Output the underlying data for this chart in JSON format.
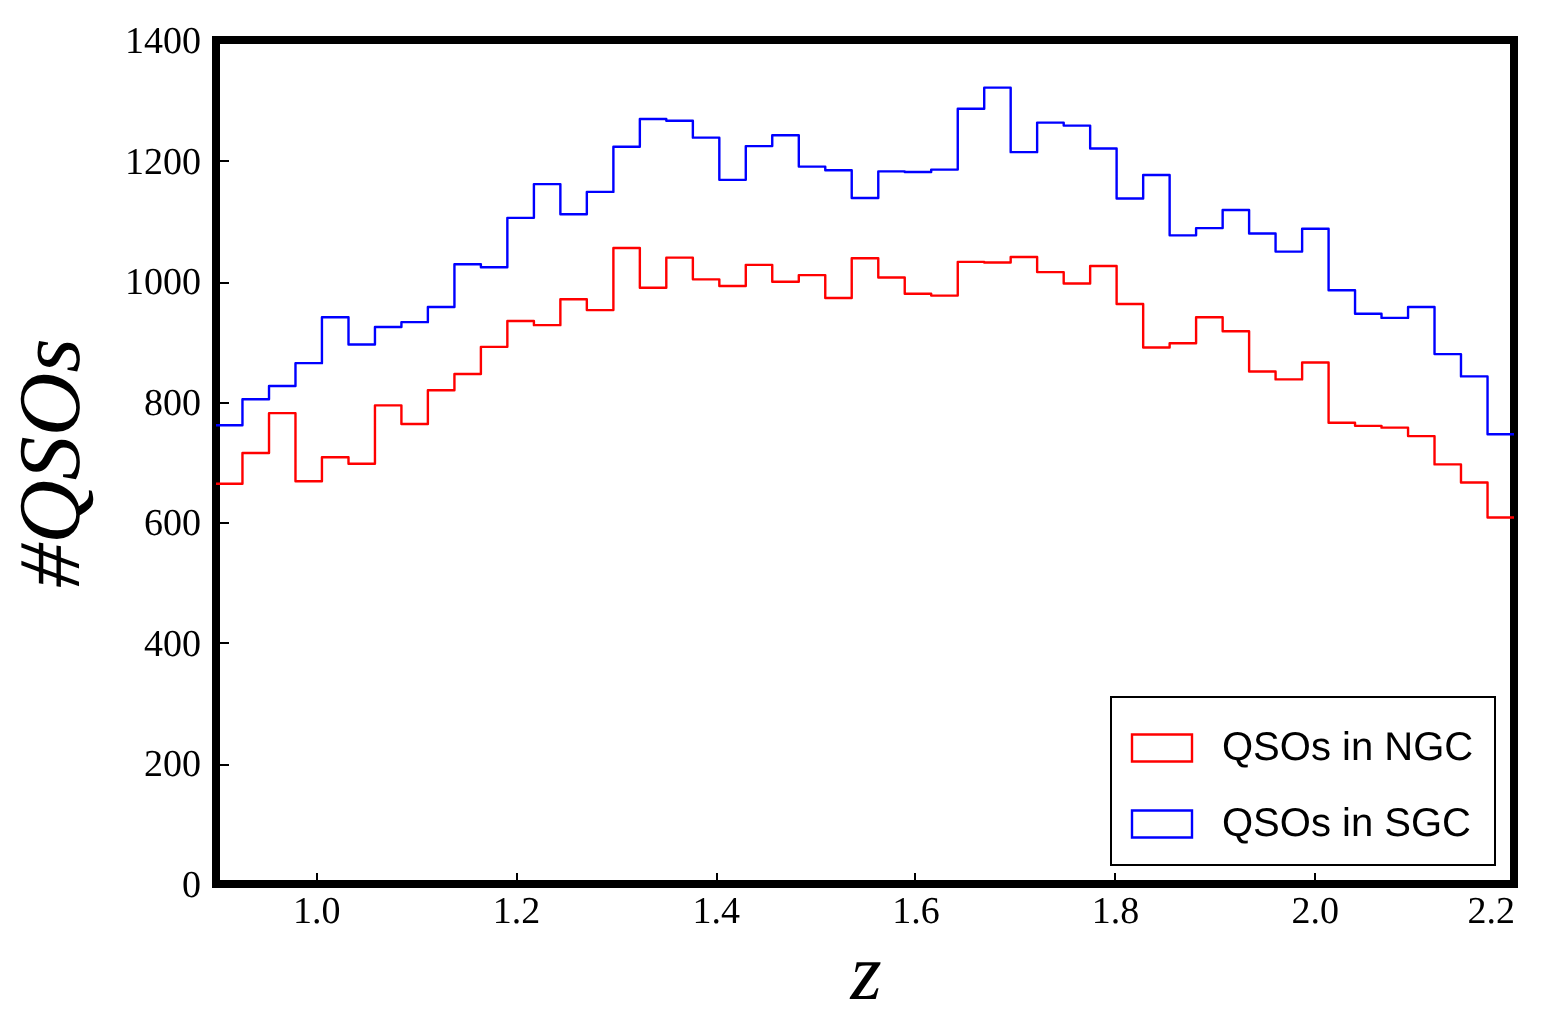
{
  "chart_data": {
    "type": "histogram",
    "xlabel": "z",
    "ylabel": "#QSOs",
    "bins": [
      0.9,
      0.9265,
      0.9531,
      0.9796,
      1.0061,
      1.0327,
      1.0592,
      1.0857,
      1.1122,
      1.1388,
      1.1653,
      1.1918,
      1.2184,
      1.2449,
      1.2714,
      1.298,
      1.3245,
      1.351,
      1.3776,
      1.4041,
      1.4306,
      1.4571,
      1.4837,
      1.5102,
      1.5367,
      1.5633,
      1.5898,
      1.6163,
      1.6429,
      1.6694,
      1.6959,
      1.7224,
      1.749,
      1.7755,
      1.802,
      1.8286,
      1.8551,
      1.8816,
      1.9082,
      1.9347,
      1.9612,
      1.9878,
      2.0143,
      2.0408,
      2.0673,
      2.0939,
      2.1204,
      2.1469,
      2.1735,
      2.2
    ],
    "series": [
      {
        "name": "QSOs in NGC",
        "color": "#ff0000",
        "values": [
          664,
          715,
          781,
          668,
          708,
          697,
          794,
          763,
          819,
          846,
          891,
          934,
          927,
          970,
          952,
          1055,
          989,
          1039,
          1003,
          992,
          1027,
          999,
          1010,
          972,
          1038,
          1006,
          979,
          976,
          1032,
          1031,
          1040,
          1015,
          996,
          1025,
          962,
          890,
          897,
          940,
          917,
          850,
          837,
          865,
          765,
          760,
          757,
          743,
          696,
          666,
          608
        ]
      },
      {
        "name": "QSOs in SGC",
        "color": "#0000ff",
        "values": [
          761,
          804,
          826,
          864,
          940,
          895,
          924,
          932,
          957,
          1028,
          1023,
          1105,
          1161,
          1111,
          1148,
          1223,
          1269,
          1266,
          1238,
          1168,
          1224,
          1242,
          1190,
          1184,
          1138,
          1182,
          1181,
          1185,
          1286,
          1321,
          1214,
          1263,
          1258,
          1220,
          1137,
          1176,
          1076,
          1088,
          1118,
          1079,
          1049,
          1087,
          985,
          946,
          939,
          957,
          879,
          842,
          746
        ]
      }
    ],
    "xlim": [
      0.9,
      2.2
    ],
    "xticks": [
      {
        "value": 1,
        "label": "1.0"
      },
      1.2,
      1.4,
      1.6,
      1.8,
      {
        "value": 2,
        "label": "2.0"
      },
      2.2
    ],
    "ylim": [
      0,
      1400
    ],
    "yticks": [
      0,
      200,
      400,
      600,
      800,
      1000,
      1200,
      1400
    ],
    "legend": "bottom right",
    "grid": false,
    "line_style": "solid"
  }
}
